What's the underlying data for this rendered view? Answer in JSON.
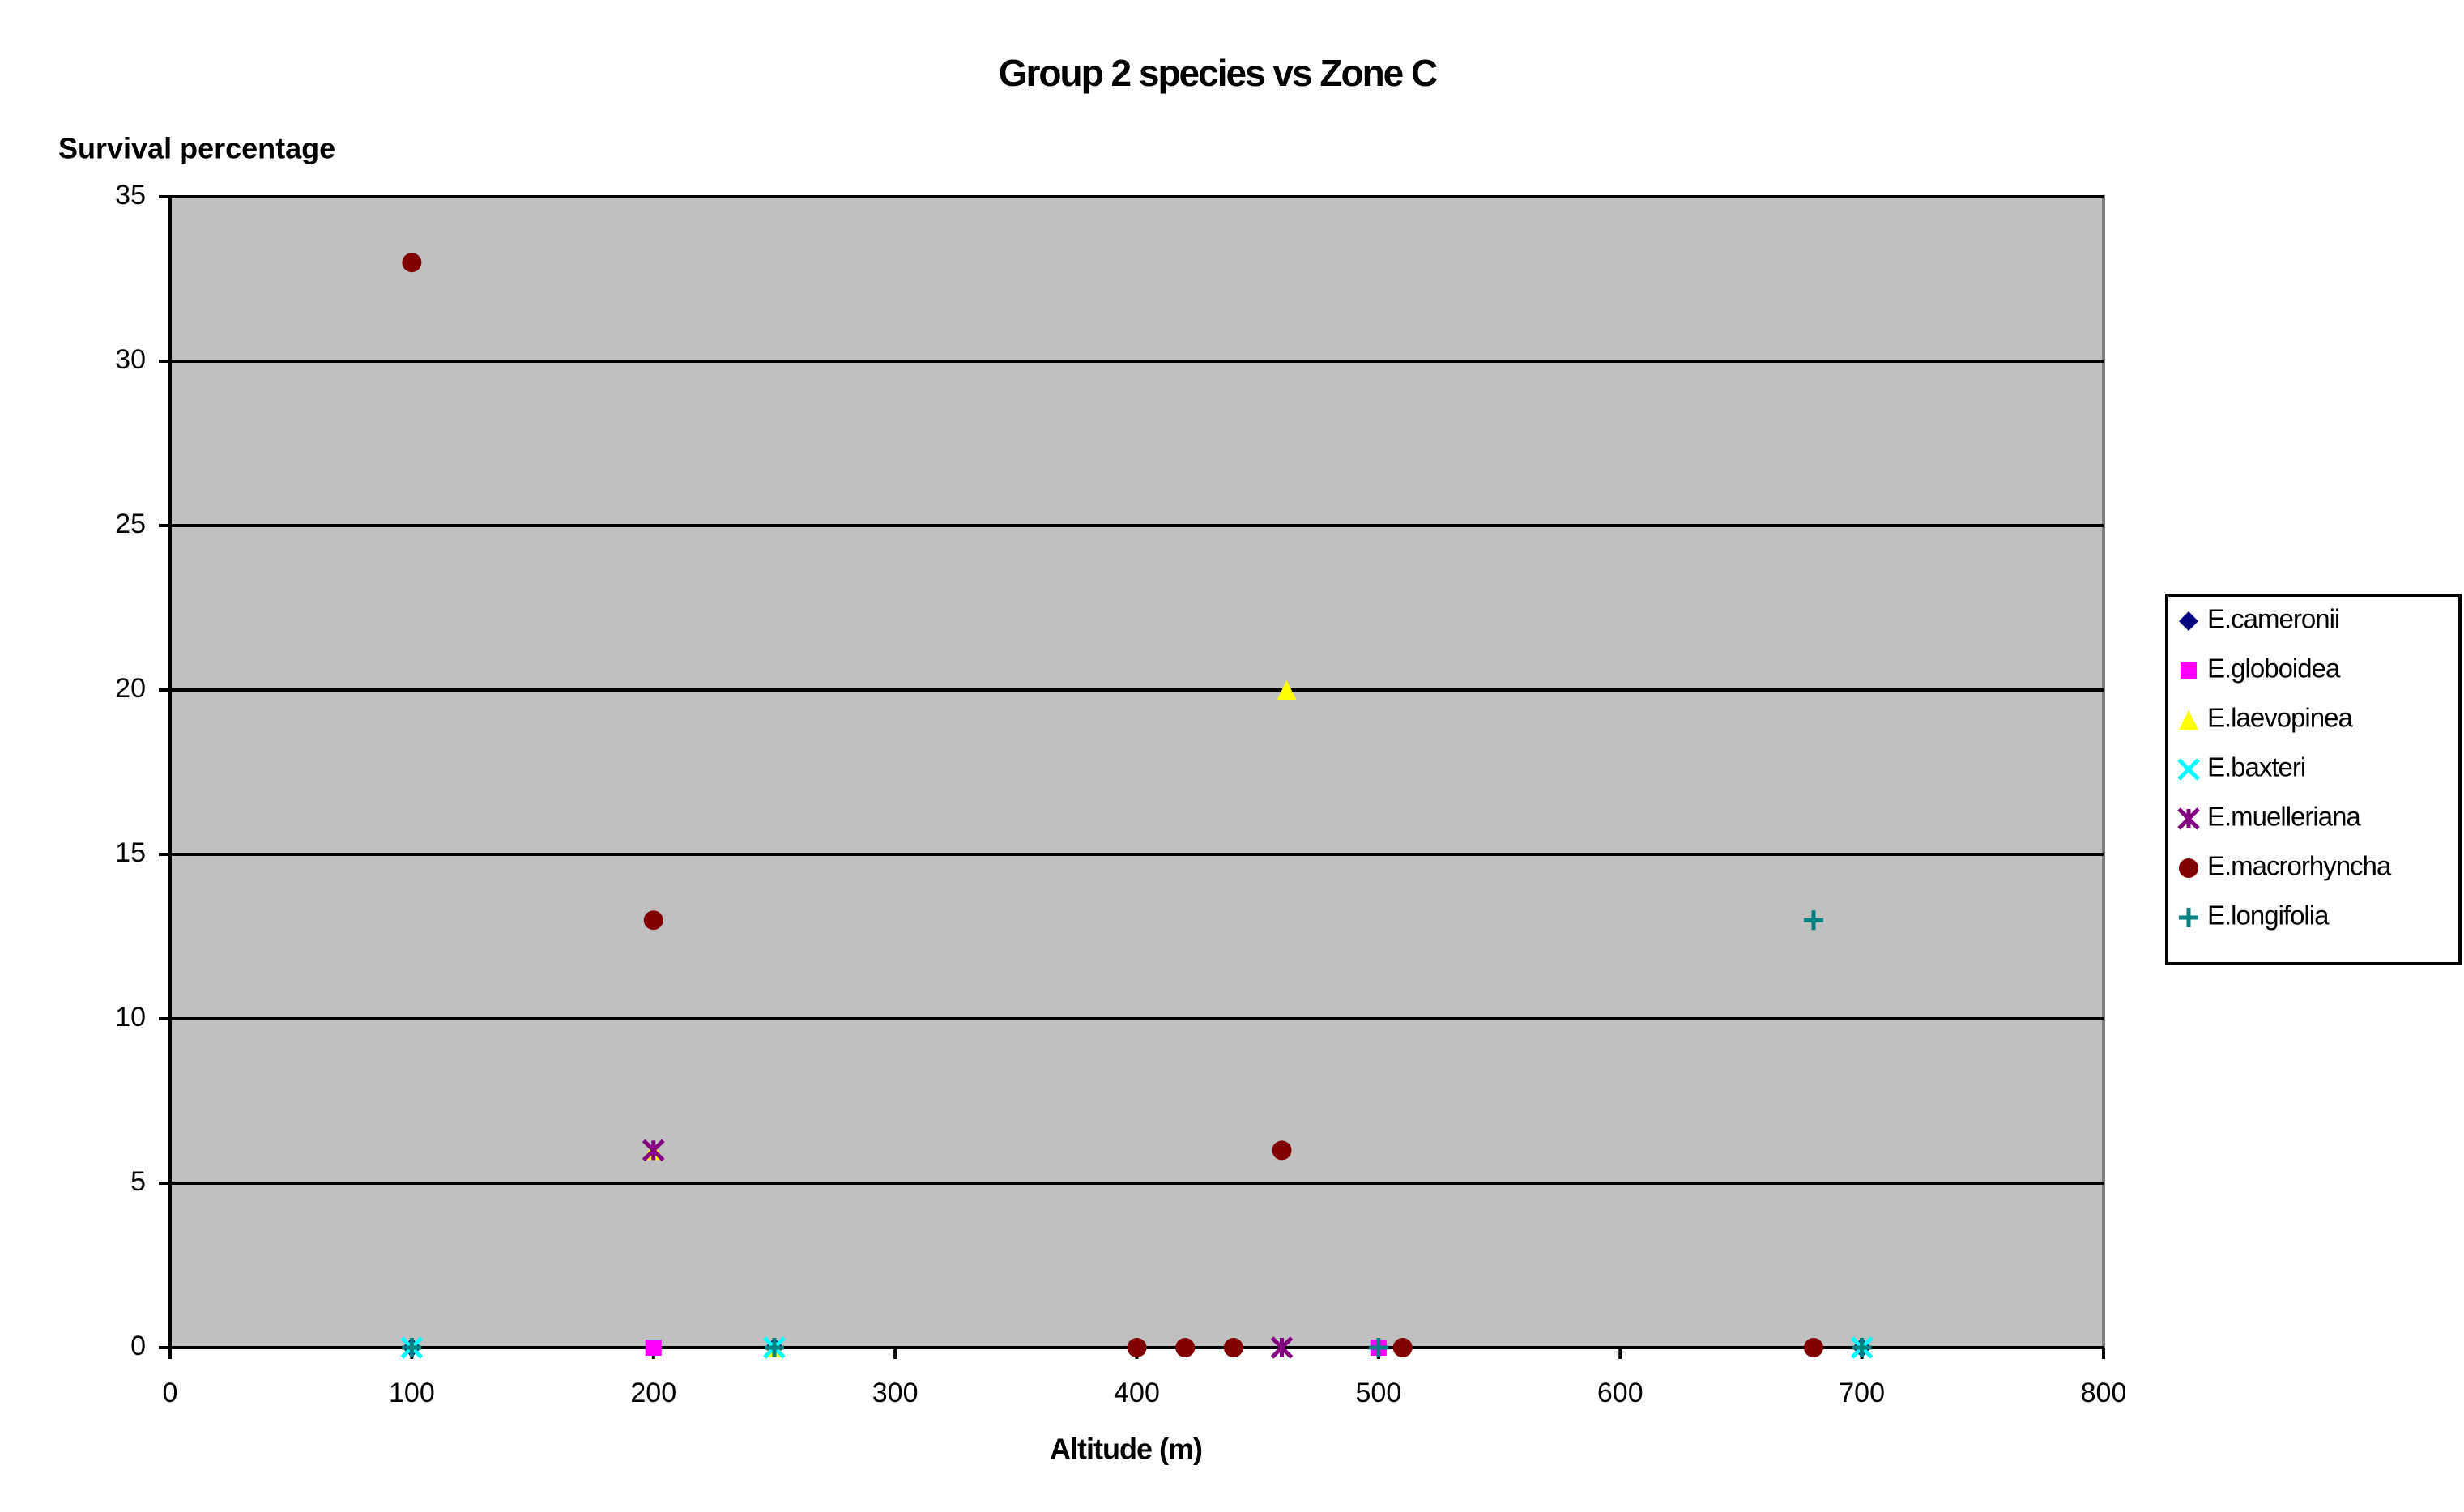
{
  "chart_data": {
    "type": "scatter",
    "title": "Group 2 species vs Zone C",
    "y_label": "Survival percentage",
    "x_label": "Altitude (m)",
    "xlim": [
      0,
      800
    ],
    "xticks": [
      0,
      100,
      200,
      300,
      400,
      500,
      600,
      700,
      800
    ],
    "ylim": [
      0,
      35
    ],
    "yticks": [
      0,
      5,
      10,
      15,
      20,
      25,
      30,
      35
    ],
    "grid": true,
    "legend": "right",
    "series": [
      {
        "name": "E.cameronii",
        "color": "#000080",
        "marker": "diamond",
        "x": [
          100,
          250,
          500,
          700
        ],
        "values": [
          0,
          0,
          0,
          0
        ]
      },
      {
        "name": "E.globoidea",
        "color": "#ff00ff",
        "marker": "square",
        "x": [
          200,
          500
        ],
        "values": [
          0,
          0
        ]
      },
      {
        "name": "E.laevopinea",
        "color": "#ffff00",
        "marker": "triangle",
        "x": [
          462,
          200,
          250
        ],
        "values": [
          20,
          6,
          0
        ]
      },
      {
        "name": "E.baxteri",
        "color": "#00ffff",
        "marker": "x",
        "x": [
          100,
          250,
          700
        ],
        "values": [
          0,
          0,
          0
        ]
      },
      {
        "name": "E.muelleriana",
        "color": "#800080",
        "marker": "star",
        "x": [
          200,
          460
        ],
        "values": [
          6,
          0
        ]
      },
      {
        "name": "E.macrorhyncha",
        "color": "#800000",
        "marker": "circle",
        "x": [
          100,
          200,
          460,
          400,
          420,
          440,
          510,
          680
        ],
        "values": [
          33,
          13,
          6,
          0,
          0,
          0,
          0,
          0
        ]
      },
      {
        "name": "E.longifolia",
        "color": "#008080",
        "marker": "plus",
        "x": [
          680,
          100,
          250,
          500,
          700
        ],
        "values": [
          13,
          0,
          0,
          0,
          0
        ]
      }
    ]
  }
}
